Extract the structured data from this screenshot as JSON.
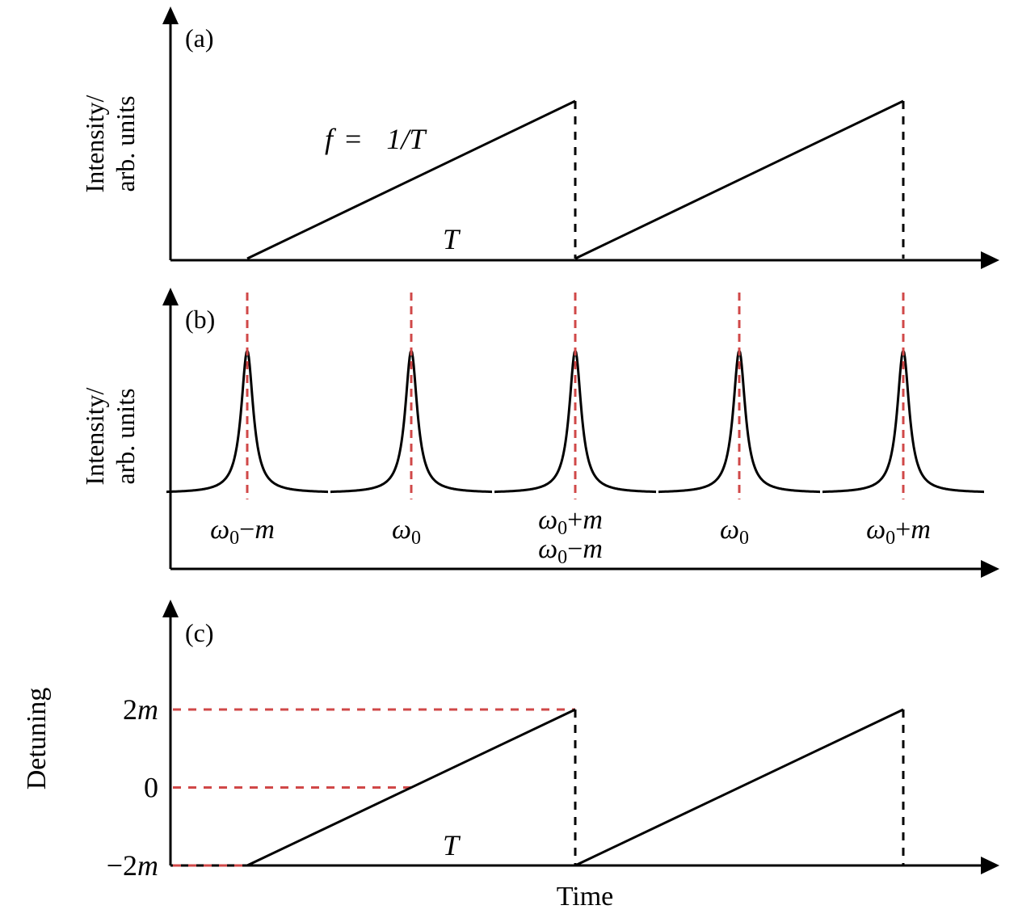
{
  "colors": {
    "line": "#000000",
    "marker": "#d04848",
    "background": "#ffffff"
  },
  "chart_data": [
    {
      "panel": "(a)",
      "type": "line",
      "description": "Sawtooth intensity ramp",
      "ylabel_line1": "Intensity/",
      "ylabel_line2": "arb. units",
      "xlabel": "",
      "annotation_formula": {
        "lhs": "f",
        "eq": "=",
        "rhs": "1/T"
      },
      "annotation_period": "T",
      "x_units": "periods",
      "xlim": [
        -0.23,
        2.23
      ],
      "ylim": [
        0,
        1.1
      ],
      "ramps": [
        {
          "x0": 0,
          "y0": 0,
          "x1": 1,
          "y1": 1
        },
        {
          "x0": 1,
          "y0": 0,
          "x1": 2,
          "y1": 1
        }
      ],
      "reset_markers_x": [
        1,
        2
      ]
    },
    {
      "panel": "(b)",
      "type": "line",
      "description": "Transmission peaks (Lorentzian) at successive sweep points",
      "ylabel_line1": "Intensity/",
      "ylabel_line2": "arb. units",
      "x_units": "periods",
      "peaks_x": [
        0,
        0.5,
        1,
        1.5,
        2
      ],
      "peak_height": 1,
      "baseline": 0,
      "peak_labels": [
        [
          "ω0−m"
        ],
        [
          "ω0"
        ],
        [
          "ω0+m",
          "ω0−m"
        ],
        [
          "ω0"
        ],
        [
          "ω0+m"
        ]
      ],
      "peak_label_parts": [
        [
          {
            "sym": "ω",
            "sub": "0",
            "op": "−",
            "var": "m"
          }
        ],
        [
          {
            "sym": "ω",
            "sub": "0",
            "op": "",
            "var": ""
          }
        ],
        [
          {
            "sym": "ω",
            "sub": "0",
            "op": "+",
            "var": "m"
          },
          {
            "sym": "ω",
            "sub": "0",
            "op": "−",
            "var": "m"
          }
        ],
        [
          {
            "sym": "ω",
            "sub": "0",
            "op": "",
            "var": ""
          }
        ],
        [
          {
            "sym": "ω",
            "sub": "0",
            "op": "+",
            "var": "m"
          }
        ]
      ]
    },
    {
      "panel": "(c)",
      "type": "line",
      "description": "Detuning sawtooth",
      "ylabel": "Detuning",
      "xlabel": "Time",
      "annotation_period": "T",
      "yticks": [
        {
          "value": -2,
          "label": "−2m",
          "num": "−2",
          "var": "m"
        },
        {
          "value": 0,
          "label": "0",
          "num": "0",
          "var": ""
        },
        {
          "value": 2,
          "label": "2m",
          "num": "2",
          "var": "m"
        }
      ],
      "ylim": [
        -2,
        4.0
      ],
      "ramps": [
        {
          "x0": 0,
          "y0": -2,
          "x1": 1,
          "y1": 2
        },
        {
          "x0": 1,
          "y0": -2,
          "x1": 2,
          "y1": 2
        }
      ],
      "reset_markers_x": [
        1,
        2
      ],
      "reference_lines": [
        {
          "y": 2,
          "x_end": 1
        },
        {
          "y": 0,
          "x_end": 0.5
        },
        {
          "y": -2,
          "x_end": 0
        }
      ]
    }
  ]
}
